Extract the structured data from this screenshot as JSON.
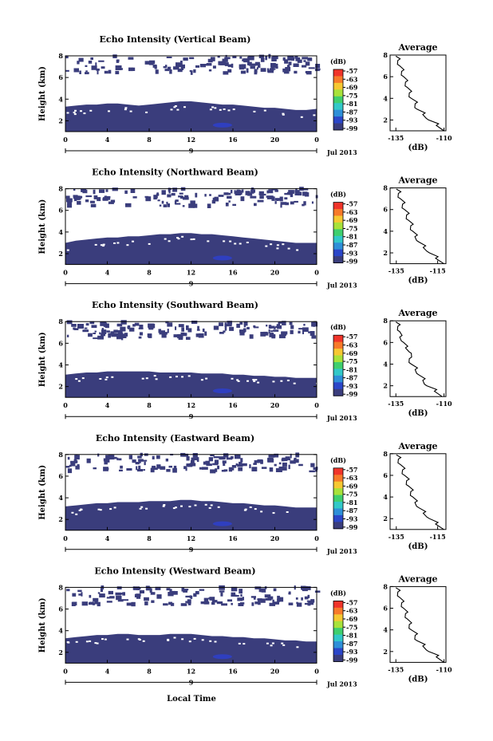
{
  "chart_data": [
    {
      "type": "heatmap",
      "title": "Echo Intensity (Vertical Beam)",
      "ylabel": "Height (km)",
      "date_label": "Jul 2013",
      "day_label": "9",
      "x_ticks": [
        "0",
        "4",
        "8",
        "12",
        "16",
        "20",
        "0"
      ],
      "y_ticks": [
        "2",
        "4",
        "6",
        "8"
      ],
      "xlim": [
        0,
        24
      ],
      "ylim": [
        1,
        8
      ],
      "colorbar": {
        "unit": "(dB)",
        "labels": [
          "-57",
          "-63",
          "-69",
          "-75",
          "-81",
          "-87",
          "-93",
          "-99"
        ]
      },
      "layer_top_km": [
        3.3,
        3.4,
        3.5,
        3.5,
        3.6,
        3.6,
        3.5,
        3.4,
        3.5,
        3.6,
        3.7,
        3.8,
        3.8,
        3.7,
        3.6,
        3.5,
        3.5,
        3.4,
        3.3,
        3.2,
        3.2,
        3.1,
        3.0,
        3.0,
        3.1
      ],
      "average_profile": {
        "title": "Average",
        "xlabel": "(dB)",
        "x_ticks": [
          "-135",
          "-110"
        ],
        "y_ticks": [
          "2",
          "4",
          "6",
          "8"
        ],
        "xlim": [
          -138,
          -109
        ],
        "ylim": [
          1,
          8
        ],
        "height_km": [
          1.0,
          1.5,
          2.0,
          2.5,
          3.0,
          3.5,
          4.0,
          4.5,
          5.0,
          5.5,
          6.0,
          6.5,
          7.0,
          7.5,
          7.9
        ],
        "db": [
          -110,
          -114,
          -118,
          -121,
          -124,
          -125,
          -127,
          -128,
          -129,
          -130,
          -131,
          -132,
          -133,
          -134,
          -135
        ]
      }
    },
    {
      "type": "heatmap",
      "title": "Echo Intensity (Northward Beam)",
      "ylabel": "Height (km)",
      "date_label": "Jul 2013",
      "day_label": "9",
      "x_ticks": [
        "0",
        "4",
        "8",
        "12",
        "16",
        "20",
        "0"
      ],
      "y_ticks": [
        "2",
        "4",
        "6",
        "8"
      ],
      "xlim": [
        0,
        24
      ],
      "ylim": [
        1,
        8
      ],
      "colorbar": {
        "unit": "(dB)",
        "labels": [
          "-57",
          "-63",
          "-69",
          "-75",
          "-81",
          "-87",
          "-93",
          "-99"
        ]
      },
      "layer_top_km": [
        3.0,
        3.2,
        3.3,
        3.4,
        3.5,
        3.5,
        3.6,
        3.6,
        3.7,
        3.8,
        3.8,
        3.9,
        3.9,
        3.8,
        3.8,
        3.7,
        3.6,
        3.5,
        3.4,
        3.3,
        3.2,
        3.1,
        3.0,
        3.0,
        3.0
      ],
      "average_profile": {
        "title": "Average",
        "xlabel": "(dB)",
        "x_ticks": [
          "-135",
          "-115"
        ],
        "y_ticks": [
          "2",
          "4",
          "6",
          "8"
        ],
        "xlim": [
          -138,
          -111
        ],
        "ylim": [
          1,
          8
        ],
        "height_km": [
          1.0,
          1.5,
          2.0,
          2.5,
          3.0,
          3.5,
          4.0,
          4.5,
          5.0,
          5.5,
          6.0,
          6.5,
          7.0,
          7.5,
          7.9
        ],
        "db": [
          -112,
          -116,
          -119,
          -122,
          -124,
          -126,
          -127,
          -128,
          -129,
          -130,
          -131,
          -132,
          -133,
          -134,
          -135
        ]
      }
    },
    {
      "type": "heatmap",
      "title": "Echo Intensity (Southward Beam)",
      "ylabel": "Height (km)",
      "date_label": "Jul 2013",
      "day_label": "9",
      "x_ticks": [
        "0",
        "4",
        "8",
        "12",
        "16",
        "20",
        "0"
      ],
      "y_ticks": [
        "2",
        "4",
        "6",
        "8"
      ],
      "xlim": [
        0,
        24
      ],
      "ylim": [
        1,
        8
      ],
      "colorbar": {
        "unit": "(dB)",
        "labels": [
          "-57",
          "-63",
          "-69",
          "-75",
          "-81",
          "-87",
          "-93",
          "-99"
        ]
      },
      "layer_top_km": [
        3.1,
        3.2,
        3.3,
        3.3,
        3.4,
        3.4,
        3.4,
        3.4,
        3.4,
        3.3,
        3.3,
        3.3,
        3.3,
        3.2,
        3.2,
        3.2,
        3.1,
        3.1,
        3.0,
        3.0,
        2.9,
        2.9,
        2.8,
        2.8,
        2.8
      ],
      "average_profile": {
        "title": "Average",
        "xlabel": "(dB)",
        "x_ticks": [
          "-135",
          "-110"
        ],
        "y_ticks": [
          "2",
          "4",
          "6",
          "8"
        ],
        "xlim": [
          -138,
          -109
        ],
        "ylim": [
          1,
          8
        ],
        "height_km": [
          1.0,
          1.5,
          2.0,
          2.5,
          3.0,
          3.5,
          4.0,
          4.5,
          5.0,
          5.5,
          6.0,
          6.5,
          7.0,
          7.5,
          7.9
        ],
        "db": [
          -111,
          -115,
          -119,
          -121,
          -123,
          -125,
          -127,
          -128,
          -127,
          -130,
          -131,
          -133,
          -133,
          -134,
          -135
        ]
      }
    },
    {
      "type": "heatmap",
      "title": "Echo Intensity (Eastward Beam)",
      "ylabel": "Height (km)",
      "date_label": "Jul 2013",
      "day_label": "9",
      "x_ticks": [
        "0",
        "4",
        "8",
        "12",
        "16",
        "20",
        "0"
      ],
      "y_ticks": [
        "2",
        "4",
        "6",
        "8"
      ],
      "xlim": [
        0,
        24
      ],
      "ylim": [
        1,
        8
      ],
      "colorbar": {
        "unit": "(dB)",
        "labels": [
          "-57",
          "-63",
          "-69",
          "-75",
          "-81",
          "-87",
          "-93",
          "-99"
        ]
      },
      "layer_top_km": [
        3.2,
        3.3,
        3.4,
        3.5,
        3.5,
        3.6,
        3.6,
        3.6,
        3.7,
        3.7,
        3.7,
        3.8,
        3.8,
        3.7,
        3.7,
        3.6,
        3.5,
        3.5,
        3.4,
        3.3,
        3.3,
        3.2,
        3.1,
        3.1,
        3.1
      ],
      "average_profile": {
        "title": "Average",
        "xlabel": "(dB)",
        "x_ticks": [
          "-135",
          "-115"
        ],
        "y_ticks": [
          "2",
          "4",
          "6",
          "8"
        ],
        "xlim": [
          -138,
          -111
        ],
        "ylim": [
          1,
          8
        ],
        "height_km": [
          1.0,
          1.5,
          2.0,
          2.5,
          3.0,
          3.5,
          4.0,
          4.5,
          5.0,
          5.5,
          6.0,
          6.5,
          7.0,
          7.5,
          7.9
        ],
        "db": [
          -112,
          -116,
          -119,
          -122,
          -124,
          -126,
          -127,
          -128,
          -129,
          -130,
          -131,
          -132,
          -133,
          -134,
          -135
        ]
      }
    },
    {
      "type": "heatmap",
      "title": "Echo Intensity (Westward Beam)",
      "ylabel": "Height (km)",
      "date_label": "Jul 2013",
      "day_label": "9",
      "x_ticks": [
        "0",
        "4",
        "8",
        "12",
        "16",
        "20",
        "0"
      ],
      "y_ticks": [
        "2",
        "4",
        "6",
        "8"
      ],
      "xlim": [
        0,
        24
      ],
      "ylim": [
        1,
        8
      ],
      "colorbar": {
        "unit": "(dB)",
        "labels": [
          "-57",
          "-63",
          "-69",
          "-75",
          "-81",
          "-87",
          "-93",
          "-99"
        ]
      },
      "layer_top_km": [
        3.3,
        3.4,
        3.5,
        3.6,
        3.6,
        3.7,
        3.7,
        3.6,
        3.6,
        3.6,
        3.7,
        3.7,
        3.7,
        3.6,
        3.5,
        3.5,
        3.4,
        3.4,
        3.3,
        3.3,
        3.2,
        3.1,
        3.1,
        3.0,
        3.0
      ],
      "average_profile": {
        "title": "Average",
        "xlabel": "(dB)",
        "x_ticks": [
          "-135",
          "-110"
        ],
        "y_ticks": [
          "2",
          "4",
          "6",
          "8"
        ],
        "xlim": [
          -138,
          -109
        ],
        "ylim": [
          1,
          8
        ],
        "height_km": [
          1.0,
          1.5,
          2.0,
          2.5,
          3.0,
          3.5,
          4.0,
          4.5,
          5.0,
          5.5,
          6.0,
          6.5,
          7.0,
          7.5,
          7.9
        ],
        "db": [
          -110,
          -114,
          -118,
          -121,
          -124,
          -125,
          -127,
          -128,
          -129,
          -130,
          -131,
          -132,
          -133,
          -134,
          -135
        ]
      }
    }
  ],
  "footer": {
    "xlabel": "Local Time"
  },
  "colors": {
    "layer": "#3a3d7c",
    "layer_core": "#2f3fc8",
    "scale": [
      "#f0342a",
      "#f77a2a",
      "#f6c832",
      "#a8e23a",
      "#3fcf6e",
      "#32c8c8",
      "#2e8fd8",
      "#2b46c8",
      "#3a3d7c"
    ]
  }
}
